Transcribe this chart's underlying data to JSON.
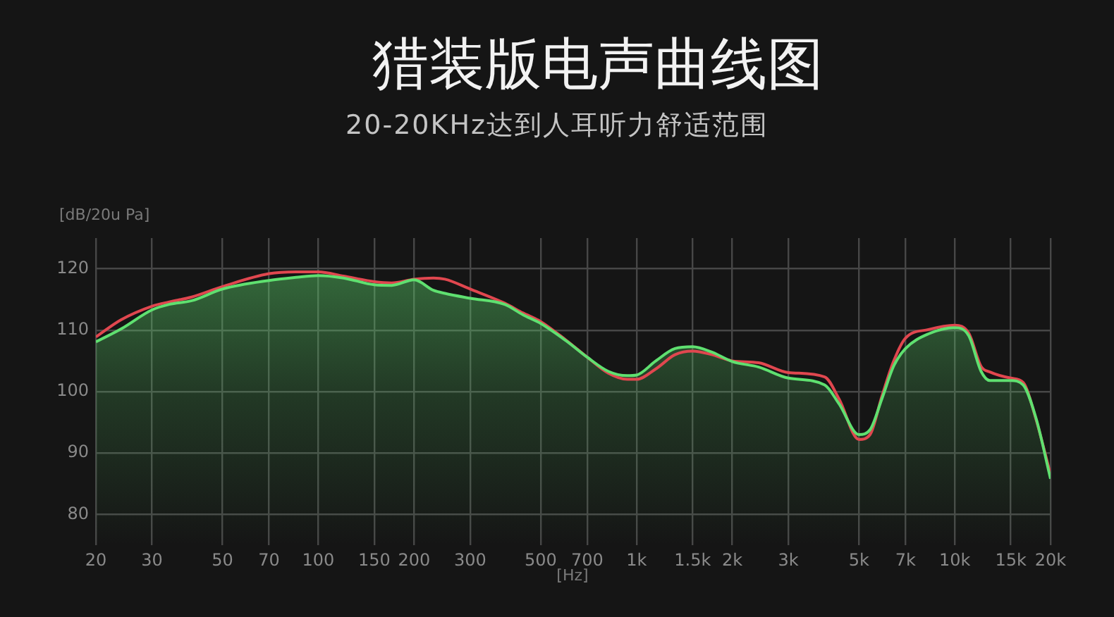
{
  "chart_data": {
    "type": "line",
    "title": "猎装版电声曲线图",
    "subtitle": "20-20KHz达到人耳听力舒适范围",
    "xlabel": "[Hz]",
    "ylabel": "[dB/20u Pa]",
    "x": [
      20,
      24,
      30,
      34,
      40,
      50,
      70,
      85,
      100,
      120,
      150,
      170,
      200,
      230,
      250,
      300,
      385,
      440,
      500,
      600,
      700,
      815,
      935,
      1000,
      1150,
      1320,
      1500,
      1730,
      2000,
      2420,
      3000,
      3900,
      4330,
      5000,
      5420,
      5900,
      6420,
      7000,
      8270,
      10000,
      11070,
      12100,
      12900,
      15000,
      16400,
      18000,
      20000
    ],
    "series": [
      {
        "color": "#e0474f",
        "values": [
          108.9,
          111.7,
          113.9,
          114.6,
          115.4,
          117.1,
          119.2,
          119.5,
          119.5,
          118.8,
          117.9,
          117.7,
          118.3,
          118.5,
          118.3,
          116.7,
          114.4,
          112.8,
          111.4,
          108.4,
          105.6,
          103.0,
          102.0,
          102.0,
          103.7,
          106.0,
          106.6,
          106.0,
          105.0,
          104.7,
          103.1,
          102.4,
          98.8,
          92.2,
          93.0,
          99.2,
          104.9,
          108.7,
          110.1,
          110.8,
          109.5,
          104.1,
          103.2,
          102.2,
          101.5,
          95.5,
          86.5
        ]
      },
      {
        "type": "area",
        "color": "#5fe070",
        "values": [
          108.1,
          110.2,
          113.3,
          114.2,
          114.8,
          116.7,
          118.1,
          118.6,
          118.9,
          118.5,
          117.4,
          117.3,
          118.2,
          116.5,
          116.0,
          115.2,
          114.2,
          112.5,
          111.1,
          108.3,
          105.6,
          103.3,
          102.6,
          102.7,
          105.0,
          107.0,
          107.3,
          106.4,
          104.9,
          104.0,
          102.2,
          101.1,
          98.0,
          93.0,
          93.8,
          98.8,
          104.1,
          107.0,
          109.4,
          110.4,
          109.1,
          103.3,
          101.8,
          101.8,
          101.1,
          95.7,
          85.8
        ]
      }
    ],
    "xlim": [
      20,
      20000
    ],
    "ylim": [
      75,
      125
    ],
    "xticks": [
      20,
      30,
      50,
      70,
      100,
      150,
      200,
      300,
      500,
      700,
      {
        "value": 1000,
        "label": "1k"
      },
      {
        "value": 1500,
        "label": "1.5k"
      },
      {
        "value": 2000,
        "label": "2k"
      },
      {
        "value": 3000,
        "label": "3k"
      },
      {
        "value": 5000,
        "label": "5k"
      },
      {
        "value": 7000,
        "label": "7k"
      },
      {
        "value": 10000,
        "label": "10k"
      },
      {
        "value": 15000,
        "label": "15k"
      },
      {
        "value": 20000,
        "label": "20k"
      }
    ],
    "yticks": [
      80,
      90,
      100,
      110,
      120
    ],
    "log": "x",
    "grid": true,
    "marker": "none",
    "line_style": "solid"
  }
}
